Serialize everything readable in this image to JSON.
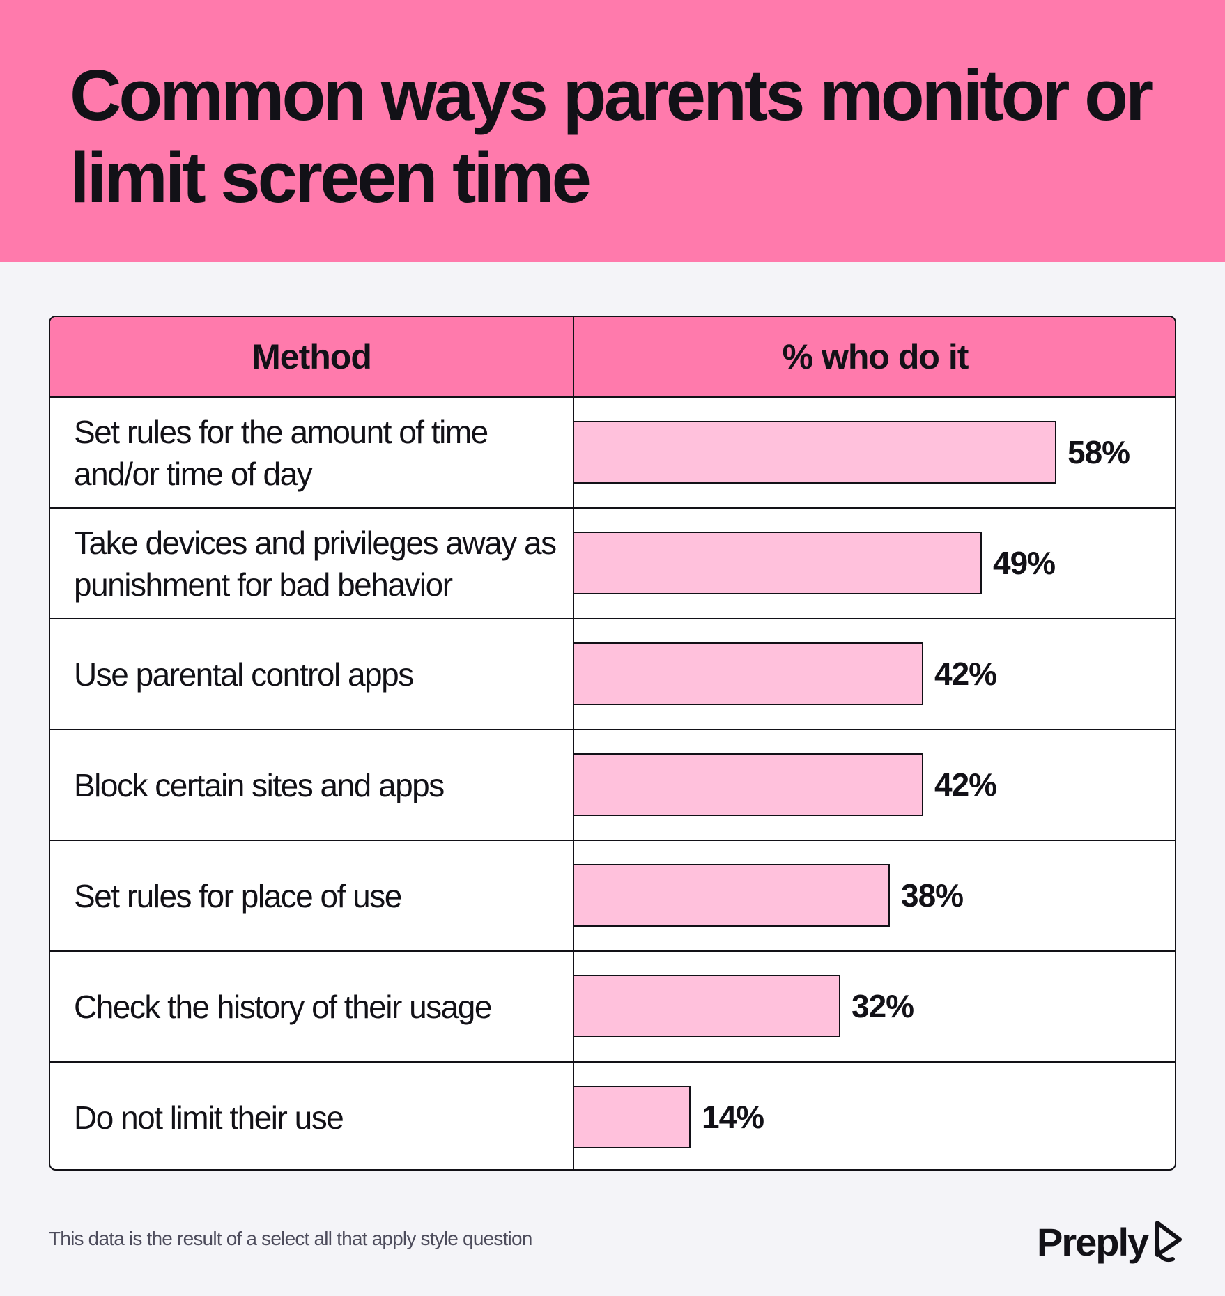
{
  "title": "Common ways parents monitor or limit screen time",
  "table": {
    "header_method": "Method",
    "header_percent": "% who do it"
  },
  "chart_data": {
    "type": "bar",
    "orientation": "horizontal",
    "categories": [
      "Set rules for the amount of time and/or time of day",
      "Take devices and privileges away as punishment for bad behavior",
      "Use parental control apps",
      "Block certain sites and apps",
      "Set rules for place of use",
      "Check the history of their usage",
      "Do not limit their use"
    ],
    "values": [
      58,
      49,
      42,
      42,
      38,
      32,
      14
    ],
    "value_labels": [
      "58%",
      "49%",
      "42%",
      "42%",
      "38%",
      "32%",
      "14%"
    ],
    "xlim": [
      0,
      100
    ],
    "colors": {
      "bar": "#ffc1dc",
      "header": "#ff7aac"
    }
  },
  "footnote": "This data is the result of a select all that apply style question",
  "brand": {
    "name": "Preply",
    "icon": "preply-logo-icon"
  }
}
